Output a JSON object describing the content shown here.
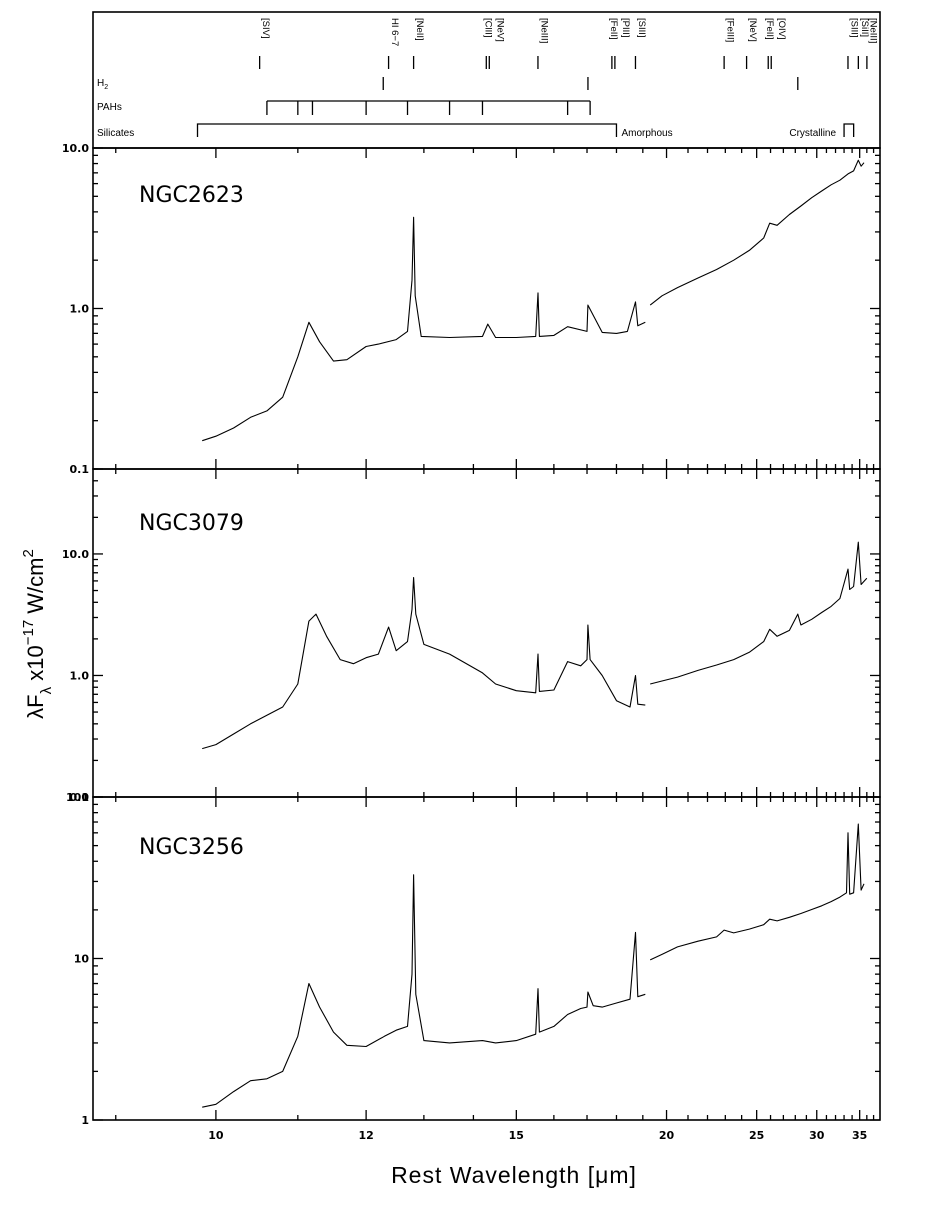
{
  "chart_data": {
    "type": "line",
    "x_axis": {
      "label": "Rest Wavelength [μm]",
      "scale": "reciprocal",
      "range_um": [
        8.8,
        38.0
      ],
      "tick_labels": [
        "10",
        "12",
        "15",
        "20",
        "25",
        "30",
        "35"
      ],
      "tick_values": [
        10,
        12,
        15,
        20,
        25,
        30,
        35
      ]
    },
    "y_axis": {
      "label_main": "λF",
      "label_sub": "λ",
      "label_factor": " x10",
      "label_exp": "−17",
      "label_unit": " W/cm",
      "label_unit_exp": "2",
      "scale": "log"
    },
    "identifications": {
      "lines": [
        {
          "label": "[SIV]",
          "x": 10.51
        },
        {
          "label": "HI 6−7",
          "x": 12.37
        },
        {
          "label": "[NeII]",
          "x": 12.81
        },
        {
          "label": "[ClII]\n[NeV]",
          "x": 14.32
        },
        {
          "label": "[NeIII]",
          "x": 15.56
        },
        {
          "label": "[FeII]\n[PIII]",
          "x": 17.89
        },
        {
          "label": "[SIII]",
          "x": 18.71
        },
        {
          "label": "[FeIII]",
          "x": 22.93
        },
        {
          "label": "[NeV]",
          "x": 24.32
        },
        {
          "label": "[FeII]\n[OIV]",
          "x": 25.94
        },
        {
          "label": "[SIII]",
          "x": 33.48
        },
        {
          "label": "[SiII]",
          "x": 34.82
        },
        {
          "label": "[NeIII]",
          "x": 36.01
        }
      ],
      "h2": {
        "label": "H",
        "sub": "2",
        "x": [
          12.28,
          17.03,
          28.22
        ]
      },
      "pahs": {
        "label": "PAHs",
        "x": [
          10.6,
          11.0,
          11.2,
          12.0,
          12.7,
          13.5,
          14.2,
          16.4,
          17.1
        ]
      },
      "silicates": {
        "label": "Silicates",
        "amorphous_label": "Amorphous",
        "crystalline_label": "Crystalline",
        "amorphous_range": [
          9.8,
          18.0
        ],
        "crystalline_range": [
          33.0,
          34.2
        ]
      }
    },
    "panels": [
      {
        "name": "NGC2623",
        "ylim": [
          0.1,
          10.0
        ],
        "y_tick_labels": [
          "0.1",
          "1.0",
          "10.0"
        ],
        "y_tick_values": [
          0.1,
          1.0,
          10.0
        ],
        "segments": [
          {
            "x": [
              9.85,
              10.0,
              10.2,
              10.4,
              10.6,
              10.8,
              11.0,
              11.15,
              11.3,
              11.5,
              11.7,
              12.0,
              12.2,
              12.5,
              12.7,
              12.78,
              12.81,
              12.84,
              12.95,
              13.5,
              14.2,
              14.32,
              14.5,
              15.0,
              15.5,
              15.56,
              15.6,
              16.0,
              16.4,
              17.0,
              17.03,
              17.5,
              18.0,
              18.4,
              18.71,
              18.8,
              19.1
            ],
            "y": [
              0.15,
              0.16,
              0.18,
              0.21,
              0.23,
              0.28,
              0.5,
              0.82,
              0.62,
              0.47,
              0.48,
              0.58,
              0.6,
              0.64,
              0.72,
              1.5,
              3.7,
              1.2,
              0.67,
              0.66,
              0.67,
              0.8,
              0.66,
              0.66,
              0.67,
              1.25,
              0.67,
              0.68,
              0.77,
              0.72,
              1.05,
              0.71,
              0.7,
              0.72,
              1.1,
              0.78,
              0.82
            ]
          },
          {
            "x": [
              19.3,
              19.8,
              20.5,
              21.5,
              22.5,
              23.5,
              24.5,
              25.5,
              25.94,
              26.5,
              27.5,
              28.5,
              29.5,
              30.5,
              31.5,
              32.5,
              33.48,
              34.2,
              34.82,
              35.2,
              35.6
            ],
            "y": [
              1.05,
              1.2,
              1.35,
              1.55,
              1.75,
              2.0,
              2.3,
              2.75,
              3.4,
              3.3,
              3.85,
              4.35,
              4.9,
              5.4,
              5.9,
              6.3,
              6.9,
              7.2,
              8.4,
              7.7,
              8.1
            ]
          }
        ]
      },
      {
        "name": "NGC3079",
        "ylim": [
          0.1,
          50.0
        ],
        "y_tick_labels": [
          "0.1",
          "1.0",
          "10.0"
        ],
        "y_tick_values": [
          0.1,
          1.0,
          10.0
        ],
        "segments": [
          {
            "x": [
              9.85,
              10.0,
              10.2,
              10.4,
              10.6,
              10.8,
              11.0,
              11.15,
              11.25,
              11.4,
              11.6,
              11.8,
              12.0,
              12.2,
              12.37,
              12.5,
              12.7,
              12.78,
              12.81,
              12.85,
              13.0,
              13.5,
              14.2,
              14.5,
              15.0,
              15.5,
              15.56,
              15.6,
              16.0,
              16.4,
              16.8,
              17.0,
              17.03,
              17.1,
              17.5,
              18.0,
              18.5,
              18.71,
              18.8,
              19.1
            ],
            "y": [
              0.25,
              0.27,
              0.33,
              0.4,
              0.47,
              0.55,
              0.85,
              2.8,
              3.2,
              2.1,
              1.35,
              1.25,
              1.4,
              1.5,
              2.5,
              1.6,
              1.9,
              3.5,
              6.4,
              3.2,
              1.8,
              1.5,
              1.05,
              0.85,
              0.75,
              0.72,
              1.5,
              0.74,
              0.76,
              1.3,
              1.2,
              1.35,
              2.6,
              1.35,
              1.0,
              0.62,
              0.55,
              1.0,
              0.58,
              0.57
            ]
          },
          {
            "x": [
              19.3,
              19.8,
              20.5,
              21.5,
              22.5,
              23.5,
              24.5,
              25.5,
              25.94,
              26.5,
              27.5,
              28.22,
              28.5,
              29.5,
              30.5,
              31.5,
              32.5,
              33.48,
              33.7,
              34.2,
              34.82,
              35.2,
              36.0
            ],
            "y": [
              0.85,
              0.9,
              0.97,
              1.1,
              1.22,
              1.35,
              1.55,
              1.9,
              2.4,
              2.1,
              2.35,
              3.2,
              2.6,
              2.9,
              3.3,
              3.7,
              4.3,
              7.5,
              5.1,
              5.4,
              12.5,
              5.6,
              6.3
            ]
          }
        ]
      },
      {
        "name": "NGC3256",
        "ylim": [
          1.0,
          100.0
        ],
        "y_tick_labels": [
          "1",
          "10",
          "100"
        ],
        "y_tick_values": [
          1.0,
          10.0,
          100.0
        ],
        "segments": [
          {
            "x": [
              9.85,
              10.0,
              10.2,
              10.4,
              10.6,
              10.8,
              11.0,
              11.15,
              11.3,
              11.5,
              11.7,
              12.0,
              12.3,
              12.5,
              12.7,
              12.78,
              12.81,
              12.85,
              13.0,
              13.5,
              14.2,
              14.5,
              15.0,
              15.5,
              15.56,
              15.6,
              16.0,
              16.4,
              16.8,
              17.0,
              17.03,
              17.2,
              17.5,
              18.0,
              18.5,
              18.71,
              18.8,
              19.1
            ],
            "y": [
              1.2,
              1.25,
              1.5,
              1.75,
              1.8,
              2.0,
              3.3,
              7.0,
              5.0,
              3.5,
              2.9,
              2.85,
              3.3,
              3.6,
              3.8,
              8.0,
              33.0,
              6.0,
              3.1,
              3.0,
              3.1,
              3.0,
              3.1,
              3.4,
              6.5,
              3.5,
              3.8,
              4.5,
              4.9,
              5.0,
              6.2,
              5.1,
              5.0,
              5.3,
              5.6,
              14.5,
              5.8,
              6.0
            ]
          },
          {
            "x": [
              19.3,
              19.8,
              20.5,
              21.5,
              22.5,
              22.93,
              23.5,
              24.5,
              25.5,
              25.94,
              26.5,
              27.5,
              28.5,
              29.5,
              30.5,
              31.5,
              32.5,
              33.3,
              33.48,
              33.7,
              34.2,
              34.82,
              35.2,
              35.6
            ],
            "y": [
              9.8,
              10.6,
              11.8,
              12.8,
              13.6,
              15.0,
              14.4,
              15.2,
              16.2,
              17.5,
              17.1,
              18.0,
              19.0,
              20.1,
              21.2,
              22.5,
              24.0,
              25.5,
              60.0,
              25.0,
              25.5,
              68.0,
              26.5,
              29.0
            ]
          }
        ]
      }
    ]
  }
}
